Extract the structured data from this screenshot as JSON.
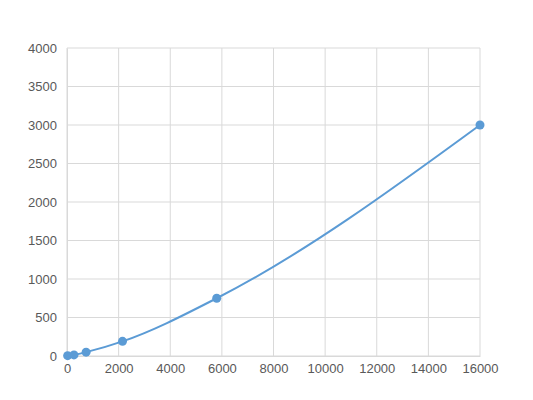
{
  "chart_data": {
    "type": "line",
    "x": [
      25,
      270,
      740,
      2150,
      5800,
      16000
    ],
    "values": [
      4,
      14,
      50,
      190,
      750,
      3000
    ],
    "color": "#5b9bd5",
    "marker": "circle",
    "line_style": "solid",
    "xlim": [
      0,
      16000
    ],
    "xticks": [
      0,
      2000,
      4000,
      6000,
      8000,
      10000,
      12000,
      14000,
      16000
    ],
    "ylim": [
      0,
      4000
    ],
    "yticks": [
      0,
      500,
      1000,
      1500,
      2000,
      2500,
      3000,
      3500,
      4000
    ],
    "grid": true
  }
}
